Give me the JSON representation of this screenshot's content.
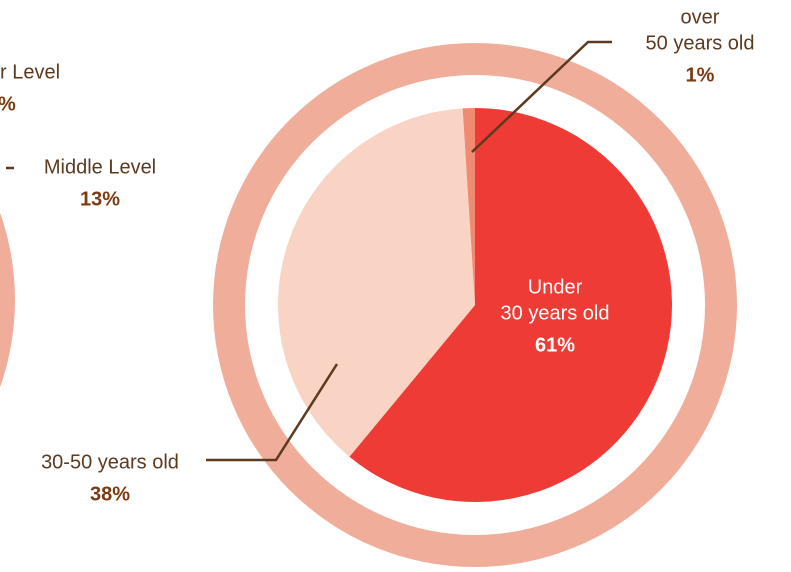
{
  "chart_data": {
    "type": "pie",
    "categories": [
      [
        "Under",
        "30 years old"
      ],
      [
        "30-50 years old"
      ],
      [
        "over",
        "50 years old"
      ]
    ],
    "values": [
      61,
      38,
      1
    ],
    "value_labels": [
      "61%",
      "38%",
      "1%"
    ],
    "colors": [
      "#ee3b36",
      "#f9d4c5",
      "#f08a70"
    ],
    "annotations": [
      [
        "r Level",
        "%"
      ],
      [
        "Middle Level",
        "13%"
      ]
    ]
  }
}
